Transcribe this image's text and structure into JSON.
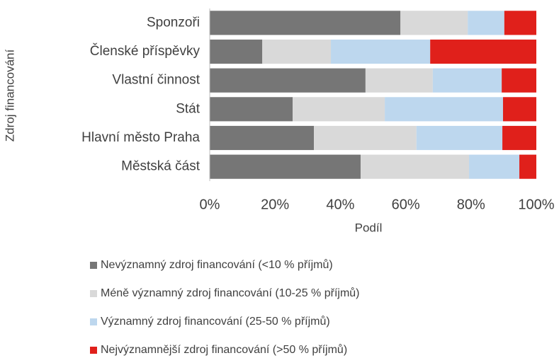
{
  "chart_data": {
    "type": "stacked-barh",
    "categories": [
      "Sponzoři",
      "Členské příspěvky",
      "Vlastní činnost",
      "Stát",
      "Hlavní město Praha",
      "Městská část"
    ],
    "series": [
      {
        "name": "Nevýznamný zdroj financování (<10 % příjmů)",
        "color": "#767676",
        "values": [
          58.4,
          16.1,
          47.7,
          25.4,
          31.9,
          46.2
        ]
      },
      {
        "name": "Méně významný zdroj financování (10-25 % příjmů)",
        "color": "#d9d9d9",
        "values": [
          20.6,
          21.0,
          20.6,
          28.2,
          31.4,
          33.2
        ]
      },
      {
        "name": "Významný zdroj financování (25-50 % příjmů)",
        "color": "#bdd7ee",
        "values": [
          11.2,
          30.4,
          21.1,
          36.2,
          26.3,
          15.4
        ]
      },
      {
        "name": "Nejvýznamnější zdroj financování (>50 % příjmů)",
        "color": "#e0201b",
        "values": [
          9.8,
          32.5,
          10.6,
          10.2,
          10.4,
          5.2
        ]
      }
    ],
    "xlabel": "Podíl",
    "ylabel": "Zdroj financování",
    "xlim": [
      0,
      100
    ],
    "xticks": [
      {
        "value": 0,
        "label": "0%"
      },
      {
        "value": 20,
        "label": "20%"
      },
      {
        "value": 40,
        "label": "40%"
      },
      {
        "value": 60,
        "label": "60%"
      },
      {
        "value": 80,
        "label": "80%"
      },
      {
        "value": 100,
        "label": "100%"
      }
    ]
  }
}
